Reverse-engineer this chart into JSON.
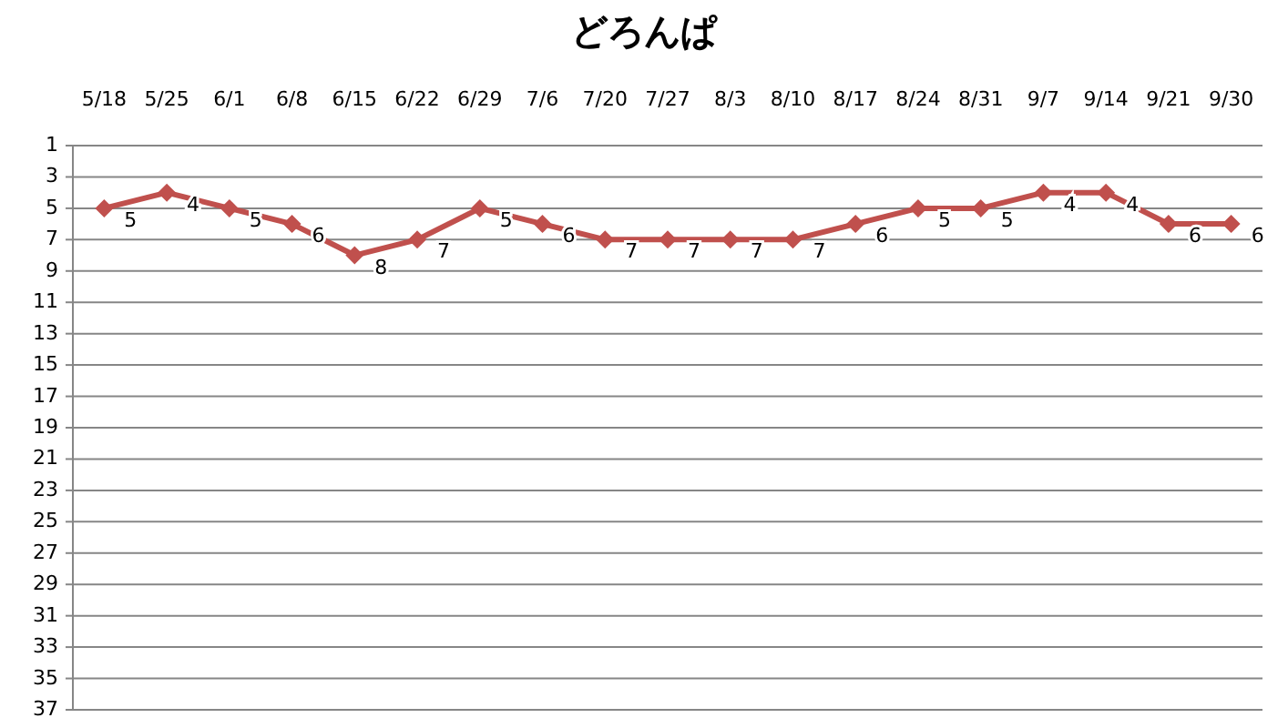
{
  "chart_data": {
    "type": "line",
    "title": "どろんぱ",
    "categories": [
      "5/18",
      "5/25",
      "6/1",
      "6/8",
      "6/15",
      "6/22",
      "6/29",
      "7/6",
      "7/20",
      "7/27",
      "8/3",
      "8/10",
      "8/17",
      "8/24",
      "8/31",
      "9/7",
      "9/14",
      "9/21",
      "9/30"
    ],
    "series": [
      {
        "color": "#c0504d",
        "values": [
          5,
          4,
          5,
          6,
          8,
          7,
          5,
          6,
          7,
          7,
          7,
          7,
          6,
          5,
          5,
          4,
          4,
          6,
          6
        ]
      }
    ],
    "ylim": [
      37,
      1
    ],
    "yticks": [
      1,
      3,
      5,
      7,
      9,
      11,
      13,
      15,
      17,
      19,
      21,
      23,
      25,
      27,
      29,
      31,
      33,
      35,
      37
    ],
    "grid": "y",
    "marker": "diamond",
    "line_style": "solid",
    "data_labels": true
  }
}
